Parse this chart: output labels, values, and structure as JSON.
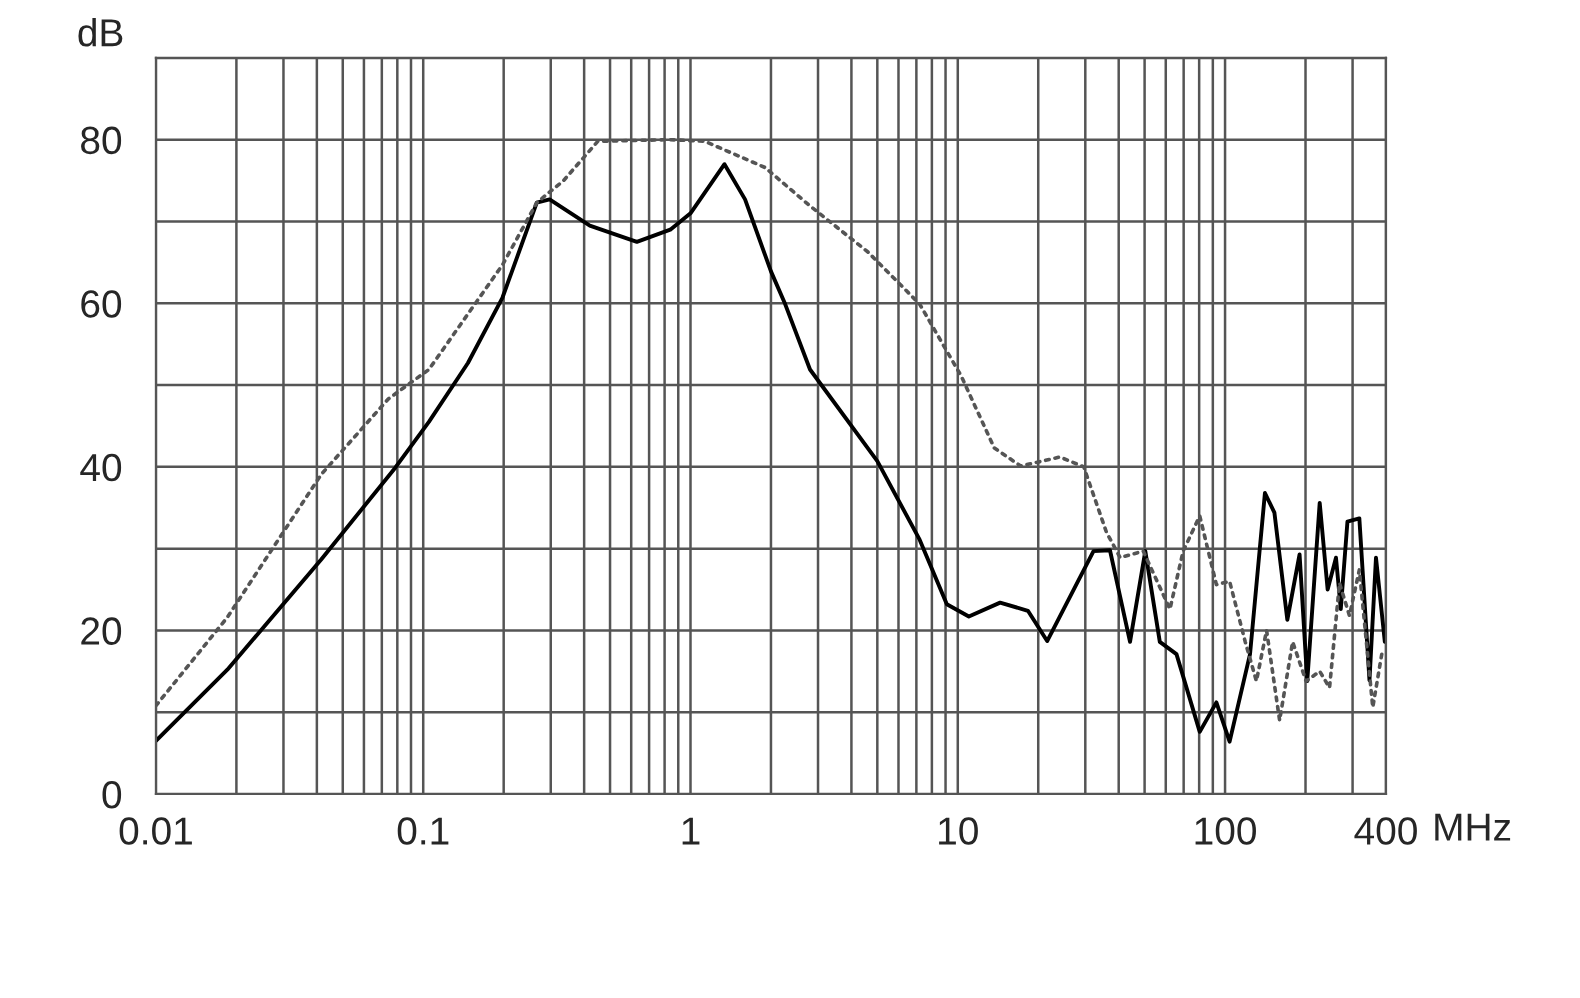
{
  "chart_data": {
    "type": "line",
    "xlabel": "MHz",
    "ylabel": "dB",
    "log": "x",
    "grid": true,
    "xlim": [
      0.01,
      400
    ],
    "ylim": [
      0,
      90
    ],
    "xticks": [
      0.01,
      0.1,
      1,
      10,
      100,
      400
    ],
    "yticks": [
      0,
      20,
      40,
      60,
      80
    ],
    "series": [
      {
        "color": "#000000",
        "line_style": "solid",
        "x": [
          0.01,
          0.0185,
          0.0416,
          0.0786,
          0.105,
          0.147,
          0.198,
          0.266,
          0.297,
          0.42,
          0.63,
          0.84,
          1.0,
          1.34,
          1.6,
          2.0,
          2.26,
          2.8,
          5.0,
          7.2,
          9.1,
          11.0,
          14.4,
          18.3,
          21.6,
          32.2,
          37.1,
          44.1,
          50.3,
          57,
          65.8,
          80.4,
          92.8,
          104,
          124,
          141,
          153,
          171,
          190,
          203,
          226,
          242,
          260,
          271,
          287,
          318,
          347,
          367,
          396
        ],
        "values": [
          6.5,
          15.2,
          28.7,
          39.9,
          45.5,
          52.7,
          60.7,
          72.3,
          72.7,
          69.5,
          67.5,
          69,
          71,
          77,
          72.7,
          63.9,
          59.9,
          51.9,
          40.7,
          31.1,
          23.2,
          21.7,
          23.4,
          22.4,
          18.7,
          29.7,
          29.8,
          18.6,
          29.7,
          18.6,
          17.1,
          7.6,
          11.2,
          6.4,
          17.1,
          36.8,
          34.4,
          21.3,
          29.3,
          13.8,
          35.6,
          25,
          28.9,
          22.6,
          33.3,
          33.7,
          13.9,
          28.9,
          18.6
        ]
      },
      {
        "color": "#555555",
        "line_style": "dotted",
        "x": [
          0.01,
          0.0185,
          0.0416,
          0.074,
          0.105,
          0.198,
          0.266,
          0.335,
          0.45,
          0.84,
          1.13,
          1.9,
          2.8,
          4.6,
          7.2,
          10.3,
          13.7,
          17.2,
          24.1,
          29.6,
          36,
          40.5,
          49.4,
          62.2,
          69.7,
          80.4,
          92.8,
          104,
          119,
          131,
          143,
          160,
          179,
          201,
          226,
          246,
          268,
          292,
          318,
          357,
          389
        ],
        "values": [
          10.8,
          21.6,
          39.1,
          48.3,
          51.9,
          64.7,
          72.3,
          75,
          79.8,
          80,
          79.8,
          76.6,
          71.9,
          66.3,
          59.9,
          51.1,
          42.3,
          40.1,
          41.2,
          40,
          32,
          28.9,
          29.7,
          22.6,
          29.7,
          34,
          25.6,
          26,
          18.6,
          13.8,
          20,
          9,
          18.6,
          13.8,
          15,
          13,
          25.8,
          21.8,
          27.4,
          10.6,
          17.8
        ]
      }
    ]
  }
}
